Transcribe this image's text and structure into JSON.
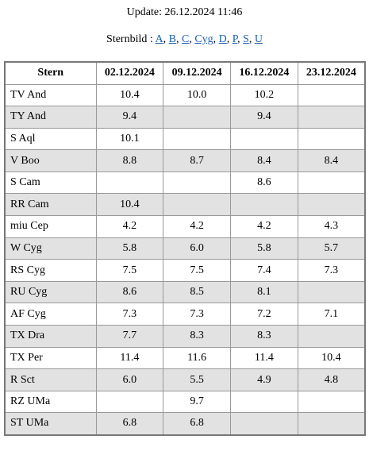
{
  "update": "Update: 26.12.2024 11:46",
  "sternbild": {
    "label": "Sternbild :",
    "separator": ",",
    "links": [
      "A",
      "B",
      "C",
      "Cyg",
      "D",
      "P",
      "S",
      "U"
    ]
  },
  "table": {
    "header": [
      "Stern",
      "02.12.2024",
      "09.12.2024",
      "16.12.2024",
      "23.12.2024"
    ],
    "rows": [
      [
        "TV And",
        "10.4",
        "10.0",
        "10.2",
        null
      ],
      [
        "TY And",
        "9.4",
        null,
        "9.4",
        null
      ],
      [
        "S Aql",
        "10.1",
        null,
        null,
        null
      ],
      [
        "V Boo",
        "8.8",
        "8.7",
        "8.4",
        "8.4"
      ],
      [
        "S Cam",
        null,
        null,
        "8.6",
        null
      ],
      [
        "RR Cam",
        "10.4",
        null,
        null,
        null
      ],
      [
        "miu Cep",
        "4.2",
        "4.2",
        "4.2",
        "4.3"
      ],
      [
        "W Cyg",
        "5.8",
        "6.0",
        "5.8",
        "5.7"
      ],
      [
        "RS Cyg",
        "7.5",
        "7.5",
        "7.4",
        "7.3"
      ],
      [
        "RU Cyg",
        "8.6",
        "8.5",
        "8.1",
        null
      ],
      [
        "AF Cyg",
        "7.3",
        "7.3",
        "7.2",
        "7.1"
      ],
      [
        "TX Dra",
        "7.7",
        "8.3",
        "8.3",
        null
      ],
      [
        "TX Per",
        "11.4",
        "11.6",
        "11.4",
        "10.4"
      ],
      [
        "R Sct",
        "6.0",
        "5.5",
        "4.9",
        "4.8"
      ],
      [
        "RZ UMa",
        null,
        "9.7",
        null,
        null
      ],
      [
        "ST UMa",
        "6.8",
        "6.8",
        null,
        null
      ]
    ]
  }
}
